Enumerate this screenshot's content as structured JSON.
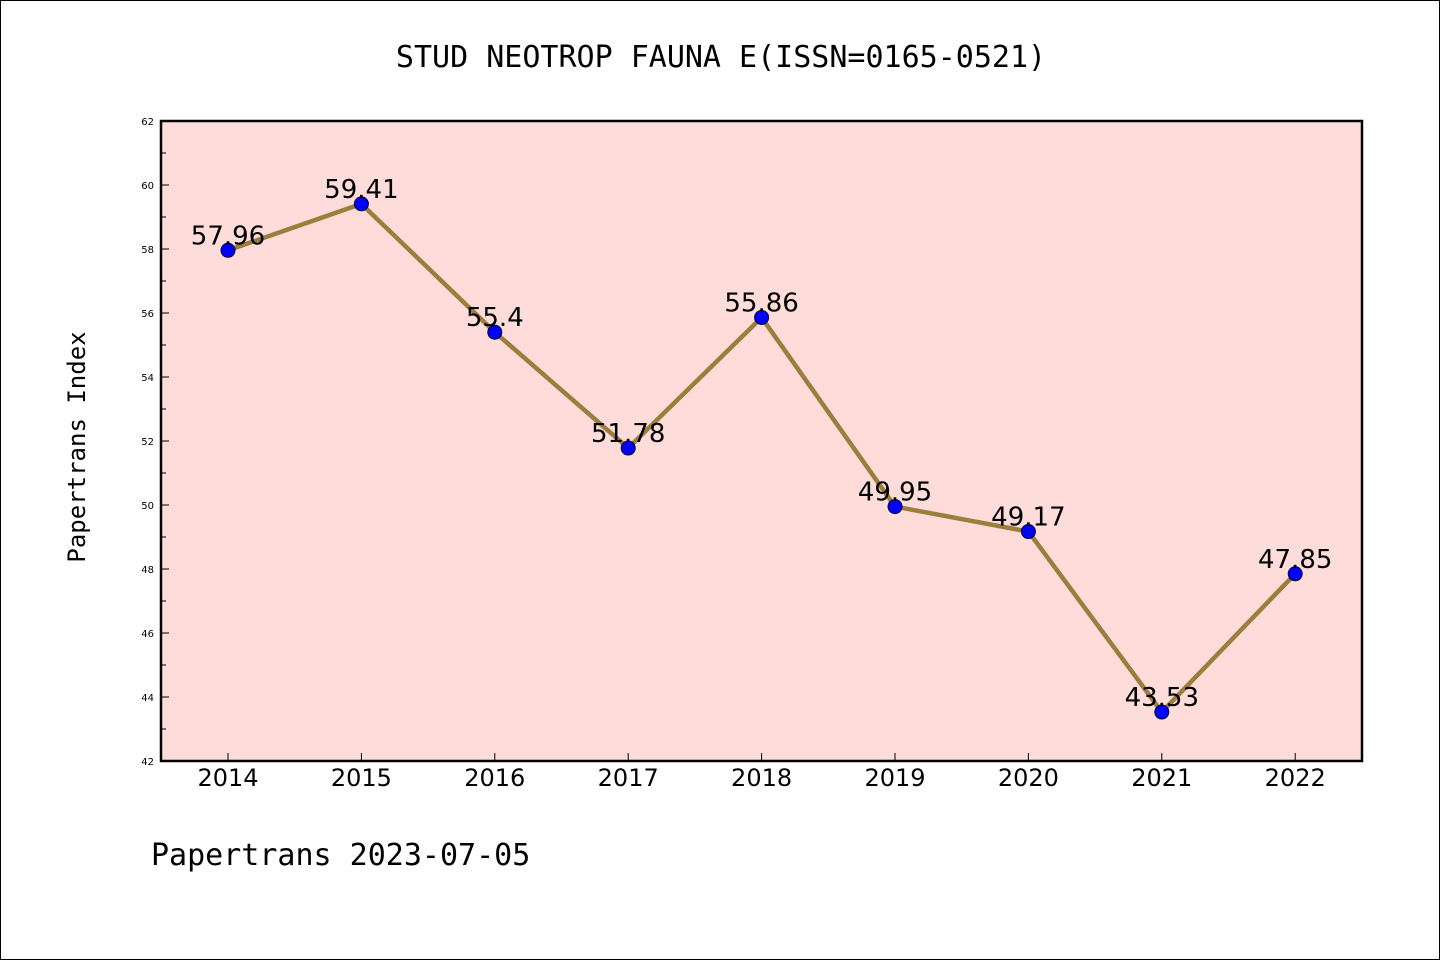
{
  "chart_data": {
    "type": "line",
    "title": "STUD NEOTROP FAUNA E(ISSN=0165-0521)",
    "xlabel": "",
    "ylabel": "Papertrans Index",
    "footer": "Papertrans 2023-07-05",
    "categories": [
      "2014",
      "2015",
      "2016",
      "2017",
      "2018",
      "2019",
      "2020",
      "2021",
      "2022"
    ],
    "values": [
      57.96,
      59.41,
      55.4,
      51.78,
      55.86,
      49.95,
      49.17,
      43.53,
      47.85
    ],
    "data_labels": [
      "57.96",
      "59.41",
      "55.4",
      "51.78",
      "55.86",
      "49.95",
      "49.17",
      "43.53",
      "47.85"
    ],
    "ylim": [
      42,
      62
    ],
    "yticks": [
      42,
      44,
      46,
      48,
      50,
      52,
      54,
      56,
      58,
      60,
      62
    ],
    "grid": false,
    "colors": {
      "plot_background": "#fddcda",
      "line": "#9b7d3c",
      "marker": "#0000ff"
    }
  }
}
